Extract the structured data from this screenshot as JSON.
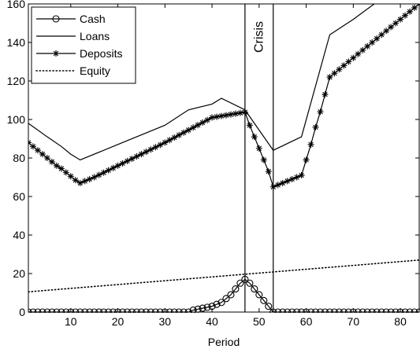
{
  "chart_data": {
    "type": "line",
    "xlabel": "Period",
    "ylabel": "",
    "xlim": [
      1,
      84
    ],
    "ylim": [
      0,
      160
    ],
    "xticks": [
      10,
      20,
      30,
      40,
      50,
      60,
      70,
      80
    ],
    "yticks": [
      0,
      20,
      40,
      60,
      80,
      100,
      120,
      140,
      160
    ],
    "grid": false,
    "legend_position": "top-left",
    "annotations": [
      {
        "text": "Crisis",
        "x_start": 47,
        "x_end": 53
      }
    ],
    "series": [
      {
        "name": "Cash",
        "style": "line-circle-markers",
        "x": [
          1,
          2,
          3,
          4,
          5,
          6,
          7,
          8,
          9,
          10,
          11,
          12,
          13,
          14,
          15,
          16,
          17,
          18,
          19,
          20,
          21,
          22,
          23,
          24,
          25,
          26,
          27,
          28,
          29,
          30,
          31,
          32,
          33,
          34,
          35,
          36,
          37,
          38,
          39,
          40,
          41,
          42,
          43,
          44,
          45,
          46,
          47,
          48,
          49,
          50,
          51,
          52,
          53,
          54,
          55,
          56,
          57,
          58,
          59,
          60,
          61,
          62,
          63,
          64,
          65,
          66,
          67,
          68,
          69,
          70,
          71,
          72,
          73,
          74,
          75,
          76,
          77,
          78,
          79,
          80,
          81,
          82,
          83,
          84
        ],
        "values": [
          0,
          0,
          0,
          0,
          0,
          0,
          0,
          0,
          0,
          0,
          0,
          0,
          0,
          0,
          0,
          0,
          0,
          0,
          0,
          0,
          0,
          0,
          0,
          0,
          0,
          0,
          0,
          0,
          0,
          0,
          0,
          0,
          0,
          0,
          0,
          1,
          1.5,
          2,
          2.5,
          3,
          4,
          5,
          7,
          9,
          12,
          15,
          17,
          15,
          12,
          9,
          6,
          3,
          0,
          0,
          0,
          0,
          0,
          0,
          0,
          0,
          0,
          0,
          0,
          0,
          0,
          0,
          0,
          0,
          0,
          0,
          0,
          0,
          0,
          0,
          0,
          0,
          0,
          0,
          0,
          0,
          0,
          0,
          0,
          0
        ]
      },
      {
        "name": "Loans",
        "style": "solid",
        "x": [
          1,
          5,
          8,
          10,
          12,
          20,
          30,
          35,
          40,
          42,
          47,
          53,
          59,
          65,
          70,
          75,
          80,
          84
        ],
        "values": [
          98,
          91,
          86,
          82,
          79,
          87,
          97,
          105,
          108,
          111,
          105,
          84,
          91,
          144,
          152,
          161,
          170,
          176
        ]
      },
      {
        "name": "Deposits",
        "style": "line-star-markers",
        "x": [
          1,
          2,
          3,
          4,
          5,
          6,
          7,
          8,
          9,
          10,
          11,
          12,
          13,
          14,
          15,
          16,
          17,
          18,
          19,
          20,
          21,
          22,
          23,
          24,
          25,
          26,
          27,
          28,
          29,
          30,
          31,
          32,
          33,
          34,
          35,
          36,
          37,
          38,
          39,
          40,
          41,
          42,
          43,
          44,
          45,
          46,
          47,
          48,
          49,
          50,
          51,
          52,
          53,
          54,
          55,
          56,
          57,
          58,
          59,
          60,
          61,
          62,
          63,
          64,
          65,
          66,
          67,
          68,
          69,
          70,
          71,
          72,
          73,
          74,
          75,
          76,
          77,
          78,
          79,
          80,
          81,
          82,
          83,
          84
        ],
        "values": [
          88,
          86,
          84,
          82,
          80,
          78,
          76,
          74.5,
          72.5,
          70.5,
          68.5,
          67,
          68,
          69,
          70,
          71.2,
          72.4,
          73.6,
          74.8,
          76,
          77.2,
          78.4,
          79.6,
          80.8,
          82,
          83.2,
          84.4,
          85.6,
          86.8,
          88,
          89.3,
          90.6,
          91.9,
          93.2,
          94.5,
          95.8,
          97.1,
          98.4,
          99.7,
          101,
          101.4,
          101.8,
          102.2,
          102.6,
          103,
          103.4,
          103.8,
          97,
          91,
          85,
          79,
          73,
          65,
          66,
          67,
          68,
          69,
          70,
          71,
          79,
          87,
          96,
          104,
          113,
          122,
          124,
          126,
          128,
          130,
          132,
          134,
          136,
          138,
          140,
          142,
          144,
          146,
          148,
          150,
          152,
          154,
          156,
          158,
          160
        ]
      },
      {
        "name": "Equity",
        "style": "dotted",
        "x": [
          1,
          84
        ],
        "values": [
          10.5,
          27
        ]
      }
    ]
  }
}
